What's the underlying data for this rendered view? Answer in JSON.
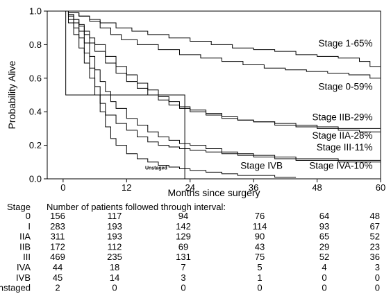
{
  "chart_data": {
    "type": "line",
    "xlabel": "Months since surgery",
    "ylabel": "Probability Alive",
    "xlim": [
      -3,
      60
    ],
    "ylim": [
      0.0,
      1.0
    ],
    "x_ticks": [
      0,
      12,
      24,
      36,
      48,
      60
    ],
    "y_ticks": [
      0.0,
      0.2,
      0.4,
      0.6,
      0.8,
      1.0
    ],
    "y_tick_labels": [
      "0.0",
      "0.2",
      "0.4",
      "0.6",
      "0.8",
      "1.0"
    ],
    "grid": false,
    "series": [
      {
        "name": "Stage 1-65%",
        "x": [
          0,
          1,
          3,
          5,
          7,
          10,
          13,
          16,
          20,
          24,
          28,
          32,
          36,
          40,
          44,
          48,
          52,
          56,
          58,
          60
        ],
        "y": [
          1.0,
          0.99,
          0.97,
          0.95,
          0.93,
          0.9,
          0.88,
          0.86,
          0.84,
          0.82,
          0.8,
          0.78,
          0.77,
          0.76,
          0.74,
          0.73,
          0.72,
          0.7,
          0.67,
          0.65
        ]
      },
      {
        "name": "Stage 0-59%",
        "x": [
          0,
          1,
          3,
          5,
          7,
          9,
          11,
          14,
          18,
          22,
          26,
          30,
          34,
          38,
          42,
          46,
          50,
          54,
          58,
          60
        ],
        "y": [
          1.0,
          0.99,
          0.97,
          0.94,
          0.9,
          0.86,
          0.83,
          0.8,
          0.77,
          0.74,
          0.72,
          0.7,
          0.68,
          0.66,
          0.65,
          0.64,
          0.63,
          0.62,
          0.6,
          0.59
        ]
      },
      {
        "name": "Stage IIB-29%",
        "x": [
          0,
          1,
          2,
          3,
          4,
          5,
          6,
          8,
          10,
          12,
          14,
          16,
          18,
          20,
          22,
          24,
          27,
          30,
          33,
          36,
          40,
          44,
          48,
          52,
          56,
          60
        ],
        "y": [
          1.0,
          0.98,
          0.95,
          0.91,
          0.86,
          0.81,
          0.76,
          0.69,
          0.63,
          0.58,
          0.54,
          0.5,
          0.47,
          0.44,
          0.42,
          0.4,
          0.38,
          0.36,
          0.35,
          0.34,
          0.33,
          0.32,
          0.31,
          0.3,
          0.3,
          0.29
        ]
      },
      {
        "name": "Stage IIA-28%",
        "x": [
          0,
          1,
          2,
          3,
          4,
          5,
          6,
          8,
          10,
          12,
          14,
          16,
          18,
          20,
          22,
          24,
          27,
          30,
          33,
          36,
          40,
          44,
          48,
          52,
          56,
          60
        ],
        "y": [
          1.0,
          0.98,
          0.95,
          0.92,
          0.88,
          0.84,
          0.8,
          0.73,
          0.67,
          0.62,
          0.57,
          0.53,
          0.49,
          0.46,
          0.43,
          0.41,
          0.39,
          0.37,
          0.35,
          0.34,
          0.32,
          0.31,
          0.3,
          0.29,
          0.28,
          0.28
        ]
      },
      {
        "name": "Stage III-11%",
        "x": [
          0,
          1,
          2,
          3,
          4,
          5,
          6,
          7,
          8,
          9,
          10,
          12,
          14,
          16,
          18,
          20,
          22,
          24,
          27,
          30,
          33,
          36,
          40,
          44,
          48,
          52,
          56,
          60
        ],
        "y": [
          1.0,
          0.97,
          0.93,
          0.88,
          0.81,
          0.73,
          0.65,
          0.58,
          0.52,
          0.46,
          0.42,
          0.36,
          0.32,
          0.28,
          0.25,
          0.23,
          0.21,
          0.2,
          0.18,
          0.16,
          0.15,
          0.14,
          0.13,
          0.12,
          0.12,
          0.11,
          0.11,
          0.11
        ]
      },
      {
        "name": "Stage IVA-10%",
        "x": [
          0,
          1,
          2,
          3,
          4,
          5,
          6,
          7,
          8,
          10,
          12,
          14,
          16,
          18,
          20,
          22,
          24,
          27,
          30,
          33,
          36,
          40,
          44,
          48,
          52,
          56,
          60
        ],
        "y": [
          1.0,
          0.95,
          0.9,
          0.84,
          0.75,
          0.66,
          0.55,
          0.45,
          0.38,
          0.33,
          0.29,
          0.25,
          0.22,
          0.2,
          0.19,
          0.18,
          0.17,
          0.16,
          0.15,
          0.14,
          0.13,
          0.12,
          0.11,
          0.11,
          0.1,
          0.1,
          0.1
        ]
      },
      {
        "name": "Stage IVB",
        "x": [
          0,
          1,
          2,
          3,
          4,
          5,
          6,
          7,
          8,
          9,
          10,
          12,
          14,
          16,
          18,
          20,
          22,
          24,
          27,
          30,
          33,
          36,
          40,
          44
        ],
        "y": [
          1.0,
          0.93,
          0.86,
          0.78,
          0.69,
          0.6,
          0.5,
          0.4,
          0.31,
          0.24,
          0.2,
          0.15,
          0.12,
          0.1,
          0.08,
          0.07,
          0.06,
          0.05,
          0.04,
          0.03,
          0.02,
          0.02,
          0.01,
          0.01
        ]
      },
      {
        "name": "Unstaged",
        "x": [
          0,
          0.5,
          0.5,
          23,
          23,
          60
        ],
        "y": [
          1.0,
          1.0,
          0.5,
          0.5,
          0.0,
          0.0
        ]
      }
    ],
    "series_labels": [
      {
        "text": "Stage 1-65%",
        "x": 58.5,
        "y": 0.79
      },
      {
        "text": "Stage 0-59%",
        "x": 58.5,
        "y": 0.53
      },
      {
        "text": "Stage IIB-29%",
        "x": 58.5,
        "y": 0.35
      },
      {
        "text": "Stage IIA-28%",
        "x": 58.5,
        "y": 0.24
      },
      {
        "text": "Stage III-11%",
        "x": 58.5,
        "y": 0.17
      },
      {
        "text": "Stage IVA-10%",
        "x": 58.5,
        "y": 0.06
      },
      {
        "text": "Stage IVB",
        "x": 41.5,
        "y": 0.06
      }
    ],
    "annotations": [
      {
        "text": "Unstaged",
        "x": 15.5,
        "y": 0.055
      }
    ],
    "risk_table": {
      "row_header": "Stage",
      "title": "Number of patients followed through interval:",
      "times": [
        0,
        12,
        24,
        36,
        48,
        60
      ],
      "rows": [
        {
          "stage": "0",
          "counts": [
            "156",
            "117",
            "94",
            "76",
            "64",
            "48"
          ]
        },
        {
          "stage": "I",
          "counts": [
            "283",
            "193",
            "142",
            "114",
            "93",
            "67"
          ]
        },
        {
          "stage": "IIA",
          "counts": [
            "311",
            "193",
            "129",
            "90",
            "65",
            "52"
          ]
        },
        {
          "stage": "IIB",
          "counts": [
            "172",
            "112",
            "69",
            "43",
            "29",
            "23"
          ]
        },
        {
          "stage": "III",
          "counts": [
            "469",
            "235",
            "131",
            "75",
            "52",
            "36"
          ]
        },
        {
          "stage": "IVA",
          "counts": [
            "44",
            "18",
            "7",
            "5",
            "4",
            "3"
          ]
        },
        {
          "stage": "IVB",
          "counts": [
            "45",
            "14",
            "3",
            "1",
            "0",
            "0"
          ]
        },
        {
          "stage": "Unstaged",
          "counts": [
            "2",
            "0",
            "0",
            "0",
            "0",
            "0"
          ]
        }
      ]
    }
  }
}
